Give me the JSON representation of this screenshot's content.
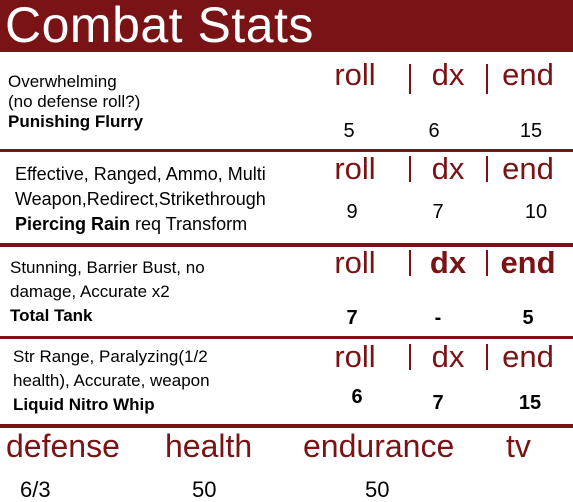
{
  "title": "Combat Stats",
  "columns": {
    "roll": "roll",
    "dx": "dx",
    "end": "end"
  },
  "attacks": [
    {
      "lines": [
        "Overwhelming",
        "(no defense roll?)"
      ],
      "name": "Punishing Flurry",
      "name_suffix": "",
      "roll": "5",
      "dx": "6",
      "end": "15"
    },
    {
      "lines": [
        "Effective, Ranged, Ammo, Multi",
        "Weapon,Redirect,Strikethrough"
      ],
      "name": "Piercing Rain",
      "name_suffix": " req Transform",
      "roll": "9",
      "dx": "7",
      "end": "10"
    },
    {
      "lines": [
        "Stunning, Barrier Bust, no",
        "damage, Accurate x2"
      ],
      "name": "Total Tank",
      "name_suffix": "",
      "roll": "7",
      "dx": "-",
      "end": "5"
    },
    {
      "lines": [
        "Str Range, Paralyzing(1/2",
        "health), Accurate, weapon"
      ],
      "name": "Liquid Nitro Whip",
      "name_suffix": "",
      "roll": "6",
      "dx": "7",
      "end": "15"
    }
  ],
  "footer": {
    "labels": {
      "defense": "defense",
      "health": "health",
      "endurance": "endurance",
      "tv": "tv"
    },
    "values": {
      "defense": "6/3",
      "health": "50",
      "endurance": "50",
      "tv": ""
    }
  },
  "colors": {
    "accent": "#7a1315",
    "background": "#ffffff",
    "text": "#000000"
  }
}
